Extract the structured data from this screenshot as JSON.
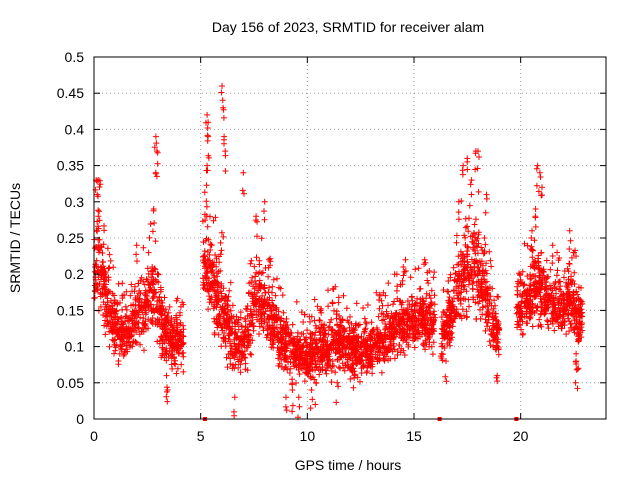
{
  "chart_data": {
    "type": "scatter",
    "title": "Day 156 of 2023, SRMTID for receiver alam",
    "xlabel": "GPS time / hours",
    "ylabel": "SRMTID / TECUs",
    "xlim": [
      0,
      24
    ],
    "ylim": [
      0,
      0.5
    ],
    "x_ticks": [
      0,
      5,
      10,
      15,
      20
    ],
    "x_tick_labels": [
      "0",
      "5",
      "10",
      "15",
      "20"
    ],
    "y_ticks": [
      0,
      0.05,
      0.1,
      0.15,
      0.2,
      0.25,
      0.3,
      0.35,
      0.4,
      0.45,
      0.5
    ],
    "y_tick_labels": [
      "0",
      "0.05",
      "0.1",
      "0.15",
      "0.2",
      "0.25",
      "0.3",
      "0.35",
      "0.4",
      "0.45",
      "0.5"
    ],
    "grid": true,
    "marker": "plus",
    "color": "#ff0000",
    "zero_markers_x": [
      5.2,
      16.2,
      19.8
    ],
    "segments": [
      {
        "x_start": 0.0,
        "x_end": 4.2,
        "envelope": [
          [
            0.0,
            0.22,
            0.15
          ],
          [
            0.2,
            0.3,
            0.17
          ],
          [
            0.6,
            0.18,
            0.13
          ],
          [
            1.2,
            0.13,
            0.1
          ],
          [
            1.8,
            0.15,
            0.11
          ],
          [
            2.4,
            0.19,
            0.12
          ],
          [
            2.8,
            0.24,
            0.13
          ],
          [
            3.2,
            0.15,
            0.1
          ],
          [
            3.6,
            0.12,
            0.09
          ],
          [
            4.2,
            0.13,
            0.09
          ]
        ],
        "peaks": [
          [
            0.1,
            0.33
          ],
          [
            0.15,
            0.31
          ],
          [
            0.2,
            0.28
          ],
          [
            2.9,
            0.39
          ],
          [
            2.95,
            0.37
          ],
          [
            2.9,
            0.34
          ],
          [
            2.8,
            0.29
          ],
          [
            2.0,
            0.24
          ],
          [
            3.4,
            0.06
          ],
          [
            3.45,
            0.04
          ]
        ]
      },
      {
        "x_start": 5.1,
        "x_end": 8.6,
        "envelope": [
          [
            5.1,
            0.3,
            0.16
          ],
          [
            5.5,
            0.24,
            0.14
          ],
          [
            5.9,
            0.22,
            0.12
          ],
          [
            6.3,
            0.15,
            0.09
          ],
          [
            6.8,
            0.13,
            0.08
          ],
          [
            7.2,
            0.14,
            0.09
          ],
          [
            7.6,
            0.22,
            0.13
          ],
          [
            8.0,
            0.18,
            0.12
          ],
          [
            8.6,
            0.14,
            0.1
          ]
        ],
        "peaks": [
          [
            5.3,
            0.42
          ],
          [
            5.35,
            0.41
          ],
          [
            5.35,
            0.39
          ],
          [
            6.0,
            0.46
          ],
          [
            6.05,
            0.43
          ],
          [
            6.1,
            0.39
          ],
          [
            6.15,
            0.37
          ],
          [
            5.3,
            0.35
          ],
          [
            7.0,
            0.34
          ],
          [
            8.0,
            0.3
          ],
          [
            7.6,
            0.28
          ],
          [
            6.6,
            0.03
          ]
        ]
      },
      {
        "x_start": 8.6,
        "x_end": 16.0,
        "envelope": [
          [
            8.6,
            0.13,
            0.09
          ],
          [
            9.2,
            0.11,
            0.07
          ],
          [
            9.8,
            0.1,
            0.07
          ],
          [
            10.4,
            0.11,
            0.07
          ],
          [
            11.0,
            0.12,
            0.08
          ],
          [
            11.6,
            0.13,
            0.09
          ],
          [
            12.2,
            0.11,
            0.08
          ],
          [
            12.8,
            0.1,
            0.08
          ],
          [
            13.4,
            0.12,
            0.09
          ],
          [
            14.0,
            0.14,
            0.1
          ],
          [
            14.6,
            0.15,
            0.11
          ],
          [
            15.2,
            0.16,
            0.12
          ],
          [
            16.0,
            0.15,
            0.11
          ]
        ],
        "peaks": [
          [
            9.0,
            0.03
          ],
          [
            9.3,
            0.04
          ],
          [
            9.6,
            0.03
          ],
          [
            10.2,
            0.04
          ],
          [
            10.4,
            0.05
          ],
          [
            11.4,
            0.05
          ],
          [
            10.6,
            0.15
          ],
          [
            11.2,
            0.18
          ],
          [
            14.5,
            0.21
          ],
          [
            14.6,
            0.22
          ],
          [
            14.2,
            0.2
          ],
          [
            15.5,
            0.22
          ],
          [
            13.4,
            0.17
          ],
          [
            12.2,
            0.06
          ]
        ]
      },
      {
        "x_start": 16.3,
        "x_end": 19.0,
        "envelope": [
          [
            16.3,
            0.13,
            0.1
          ],
          [
            16.8,
            0.17,
            0.12
          ],
          [
            17.2,
            0.25,
            0.15
          ],
          [
            17.6,
            0.27,
            0.16
          ],
          [
            18.0,
            0.26,
            0.16
          ],
          [
            18.4,
            0.19,
            0.13
          ],
          [
            19.0,
            0.12,
            0.09
          ]
        ],
        "peaks": [
          [
            17.3,
            0.35
          ],
          [
            17.5,
            0.36
          ],
          [
            17.9,
            0.37
          ],
          [
            18.0,
            0.37
          ],
          [
            17.7,
            0.33
          ],
          [
            18.4,
            0.31
          ],
          [
            17.1,
            0.3
          ],
          [
            18.3,
            0.25
          ],
          [
            16.3,
            0.09
          ],
          [
            16.5,
            0.08
          ],
          [
            18.9,
            0.06
          ]
        ]
      },
      {
        "x_start": 19.8,
        "x_end": 22.9,
        "envelope": [
          [
            19.8,
            0.17,
            0.13
          ],
          [
            20.3,
            0.19,
            0.14
          ],
          [
            20.8,
            0.22,
            0.15
          ],
          [
            21.3,
            0.19,
            0.14
          ],
          [
            21.8,
            0.17,
            0.13
          ],
          [
            22.3,
            0.2,
            0.13
          ],
          [
            22.9,
            0.15,
            0.1
          ]
        ],
        "peaks": [
          [
            20.8,
            0.35
          ],
          [
            20.9,
            0.34
          ],
          [
            21.0,
            0.32
          ],
          [
            20.7,
            0.29
          ],
          [
            21.5,
            0.24
          ],
          [
            22.3,
            0.26
          ],
          [
            22.5,
            0.23
          ],
          [
            22.6,
            0.08
          ],
          [
            22.7,
            0.07
          ],
          [
            20.5,
            0.25
          ],
          [
            22.6,
            0.09
          ]
        ]
      }
    ]
  }
}
